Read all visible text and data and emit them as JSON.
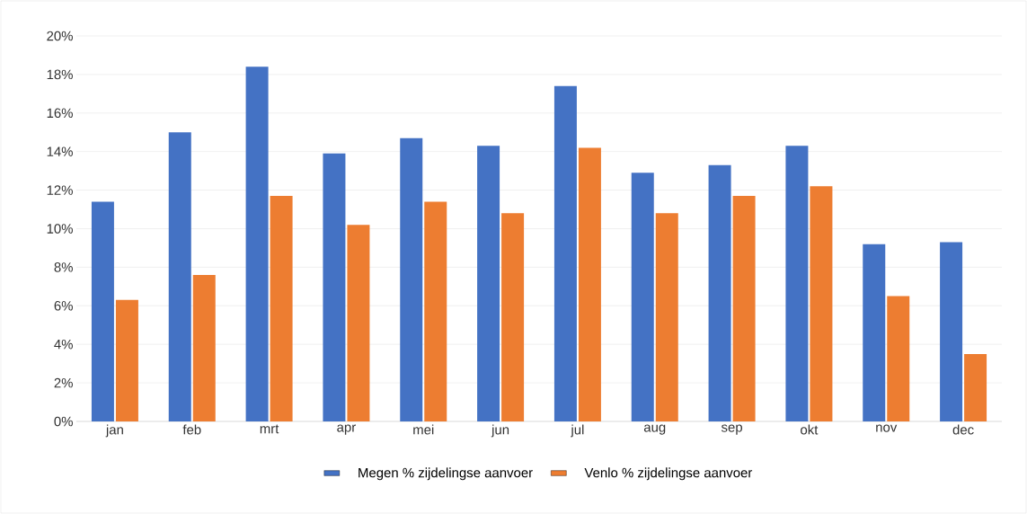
{
  "chart_data": {
    "type": "bar",
    "categories": [
      "jan",
      "feb",
      "mrt",
      "apr",
      "mei",
      "jun",
      "jul",
      "aug",
      "sep",
      "okt",
      "nov",
      "dec"
    ],
    "series": [
      {
        "name": "Megen % zijdelingse aanvoer",
        "color": "#4472c4",
        "values": [
          11.4,
          15.0,
          18.4,
          13.9,
          14.7,
          14.3,
          17.4,
          12.9,
          13.3,
          14.3,
          9.2,
          9.3
        ]
      },
      {
        "name": "Venlo % zijdelingse aanvoer",
        "color": "#ed7d31",
        "values": [
          6.3,
          7.6,
          11.7,
          10.2,
          11.4,
          10.8,
          14.2,
          10.8,
          11.7,
          12.2,
          6.5,
          3.5
        ]
      }
    ],
    "ylim": [
      0,
      20
    ],
    "yticks": [
      {
        "value": 0,
        "label": "0%"
      },
      {
        "value": 2,
        "label": "2%"
      },
      {
        "value": 4,
        "label": "4%"
      },
      {
        "value": 6,
        "label": "6%"
      },
      {
        "value": 8,
        "label": "8%"
      },
      {
        "value": 10,
        "label": "10%"
      },
      {
        "value": 12,
        "label": "12%"
      },
      {
        "value": 14,
        "label": "14%"
      },
      {
        "value": 16,
        "label": "16%"
      },
      {
        "value": 18,
        "label": "18%"
      },
      {
        "value": 20,
        "label": "20%"
      }
    ],
    "grid": "y",
    "legend": "bottom"
  }
}
